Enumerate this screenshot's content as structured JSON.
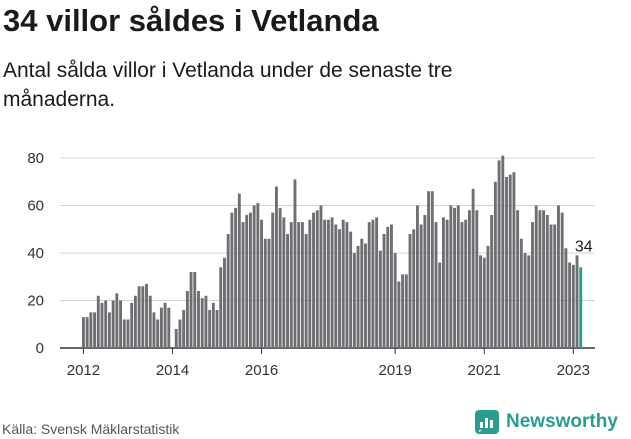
{
  "title": "34 villor såldes i Vetlanda",
  "subtitle": "Antal sålda villor i Vetlanda under de senaste tre månaderna.",
  "source": "Källa: Svensk Mäklarstatistik",
  "brand": {
    "name": "Newsworthy",
    "icon": "newsworthy-logo-icon",
    "color": "#2a9d8f"
  },
  "chart_data": {
    "type": "bar",
    "title": "34 villor såldes i Vetlanda",
    "xlabel": "",
    "ylabel": "",
    "ylim": [
      0,
      80
    ],
    "yticks": [
      0,
      20,
      40,
      60,
      80
    ],
    "xtick_labels": [
      "2012",
      "2014",
      "2016",
      "2019",
      "2021",
      "2023"
    ],
    "grid": true,
    "bar_color": "#6e6e73",
    "highlight_color": "#2a9d8f",
    "highlight_label": "34",
    "x_start": "2012-01",
    "x_end": "2023-03",
    "values": [
      13,
      13,
      15,
      15,
      22,
      19,
      20,
      15,
      20,
      23,
      20,
      12,
      12,
      19,
      22,
      26,
      26,
      27,
      22,
      15,
      12,
      17,
      19,
      17,
      0,
      8,
      12,
      16,
      24,
      32,
      32,
      24,
      21,
      22,
      16,
      19,
      16,
      34,
      38,
      48,
      57,
      59,
      65,
      53,
      56,
      57,
      60,
      61,
      54,
      46,
      46,
      57,
      68,
      59,
      55,
      48,
      53,
      71,
      53,
      53,
      48,
      54,
      57,
      58,
      60,
      54,
      54,
      55,
      52,
      50,
      54,
      53,
      49,
      40,
      43,
      46,
      44,
      53,
      54,
      55,
      41,
      48,
      51,
      52,
      40,
      28,
      31,
      31,
      48,
      50,
      60,
      52,
      56,
      66,
      66,
      53,
      36,
      55,
      54,
      60,
      59,
      60,
      53,
      54,
      58,
      67,
      58,
      39,
      38,
      43,
      56,
      70,
      79,
      81,
      72,
      73,
      74,
      58,
      46,
      40,
      39,
      53,
      60,
      58,
      58,
      56,
      52,
      52,
      60,
      57,
      42,
      36,
      35,
      39,
      34
    ],
    "highlight_last_n": 1
  }
}
